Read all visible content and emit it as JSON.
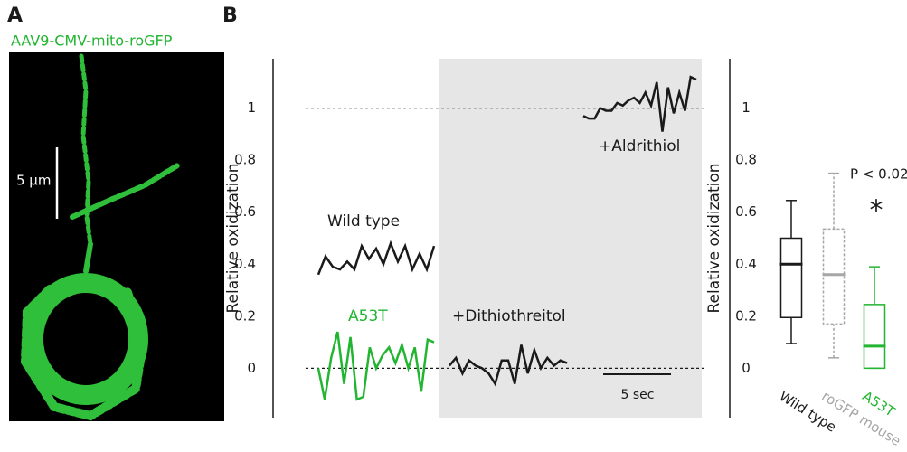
{
  "panel_a": {
    "label": "A",
    "title": "AAV9-CMV-mito-roGFP",
    "scale_bar": "5 µm"
  },
  "panel_b": {
    "label": "B"
  },
  "chart_data": [
    {
      "type": "line",
      "ylabel": "Relative oxidization",
      "ylim": [
        -0.19,
        1.19
      ],
      "yticks": [
        0,
        0.2,
        0.4,
        0.6,
        0.8,
        1
      ],
      "reference_lines": [
        0,
        1
      ],
      "scale_bar": "5 sec",
      "series": [
        {
          "name": "Wild type",
          "color": "#1a1a1a",
          "values": [
            0.36,
            0.43,
            0.39,
            0.38,
            0.41,
            0.38,
            0.47,
            0.42,
            0.46,
            0.4,
            0.48,
            0.41,
            0.47,
            0.38,
            0.44,
            0.38,
            0.47
          ]
        },
        {
          "name": "A53T",
          "color": "#22b531",
          "values": [
            0.0,
            -0.12,
            0.04,
            0.14,
            -0.06,
            0.12,
            -0.12,
            -0.11,
            0.08,
            0.0,
            0.05,
            0.08,
            0.02,
            0.09,
            0.0,
            0.08,
            -0.09,
            0.11,
            0.1
          ]
        },
        {
          "name": "+Dithiothreitol",
          "color": "#1a1a1a",
          "values": [
            0.01,
            0.04,
            -0.02,
            0.03,
            0.01,
            0.0,
            -0.02,
            -0.06,
            0.03,
            0.03,
            -0.06,
            0.09,
            -0.02,
            0.07,
            0.0,
            0.04,
            0.01,
            0.03,
            0.02
          ]
        },
        {
          "name": "+Aldrithiol",
          "color": "#1a1a1a",
          "values": [
            0.97,
            0.96,
            0.96,
            1.0,
            0.99,
            0.99,
            1.02,
            1.01,
            1.03,
            1.04,
            1.02,
            1.06,
            1.01,
            1.1,
            0.91,
            1.08,
            0.98,
            1.06,
            0.99,
            1.12,
            1.11
          ]
        }
      ]
    },
    {
      "type": "box",
      "ylabel": "Relative oxidization",
      "ylim": [
        -0.19,
        1.19
      ],
      "yticks": [
        0,
        0.2,
        0.4,
        0.6,
        0.8,
        1
      ],
      "categories": [
        "Wild type",
        "roGFP mouse",
        "A53T"
      ],
      "colors": [
        "#1a1a1a",
        "#a6a6a6",
        "#22b531"
      ],
      "whisker_low": [
        0.095,
        0.04,
        0.0
      ],
      "q1": [
        0.195,
        0.17,
        0.0
      ],
      "median": [
        0.4,
        0.36,
        0.085
      ],
      "q3": [
        0.5,
        0.535,
        0.245
      ],
      "whisker_high": [
        0.645,
        0.75,
        0.39
      ],
      "annotations": [
        "P < 0.02",
        "*"
      ]
    }
  ]
}
